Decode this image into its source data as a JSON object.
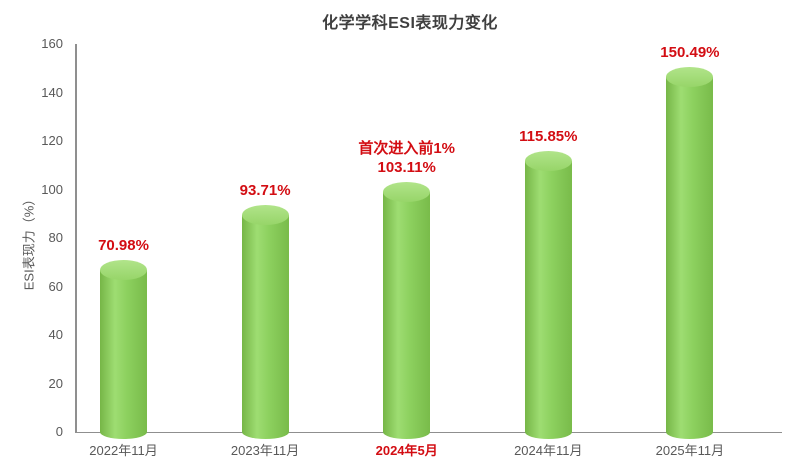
{
  "chart_data": {
    "type": "bar",
    "subtype": "3d-cylinder",
    "title": "化学学科ESI表现力变化",
    "ylabel": "ESI表现力（%）",
    "xlabel": "",
    "categories": [
      "2022年11月",
      "2023年11月",
      "2024年5月",
      "2024年11月",
      "2025年11月"
    ],
    "values": [
      70.98,
      93.71,
      103.11,
      115.85,
      150.49
    ],
    "data_labels": [
      [
        "70.98%"
      ],
      [
        "93.71%"
      ],
      [
        "首次进入前1%",
        "103.11%"
      ],
      [
        "115.85%"
      ],
      [
        "150.49%"
      ]
    ],
    "annotation": "首次进入前1%",
    "highlighted_category_index": 2,
    "ylim": [
      0,
      160
    ],
    "yticks": [
      0,
      20,
      40,
      60,
      80,
      100,
      120,
      140,
      160
    ],
    "grid": false,
    "legend": "none",
    "colors": {
      "label_red": "#d30d13",
      "axis_text": "#595959",
      "axis_line": "#8f8f8f",
      "title_text": "#3f3f3f",
      "bar_edge_left": "#76b647",
      "bar_highlight": "#9edd72",
      "bar_mid": "#8cd05e",
      "bar_edge_right": "#79bb4a",
      "cap_light": "#b1e48a",
      "cap_dark": "#97d569"
    }
  }
}
